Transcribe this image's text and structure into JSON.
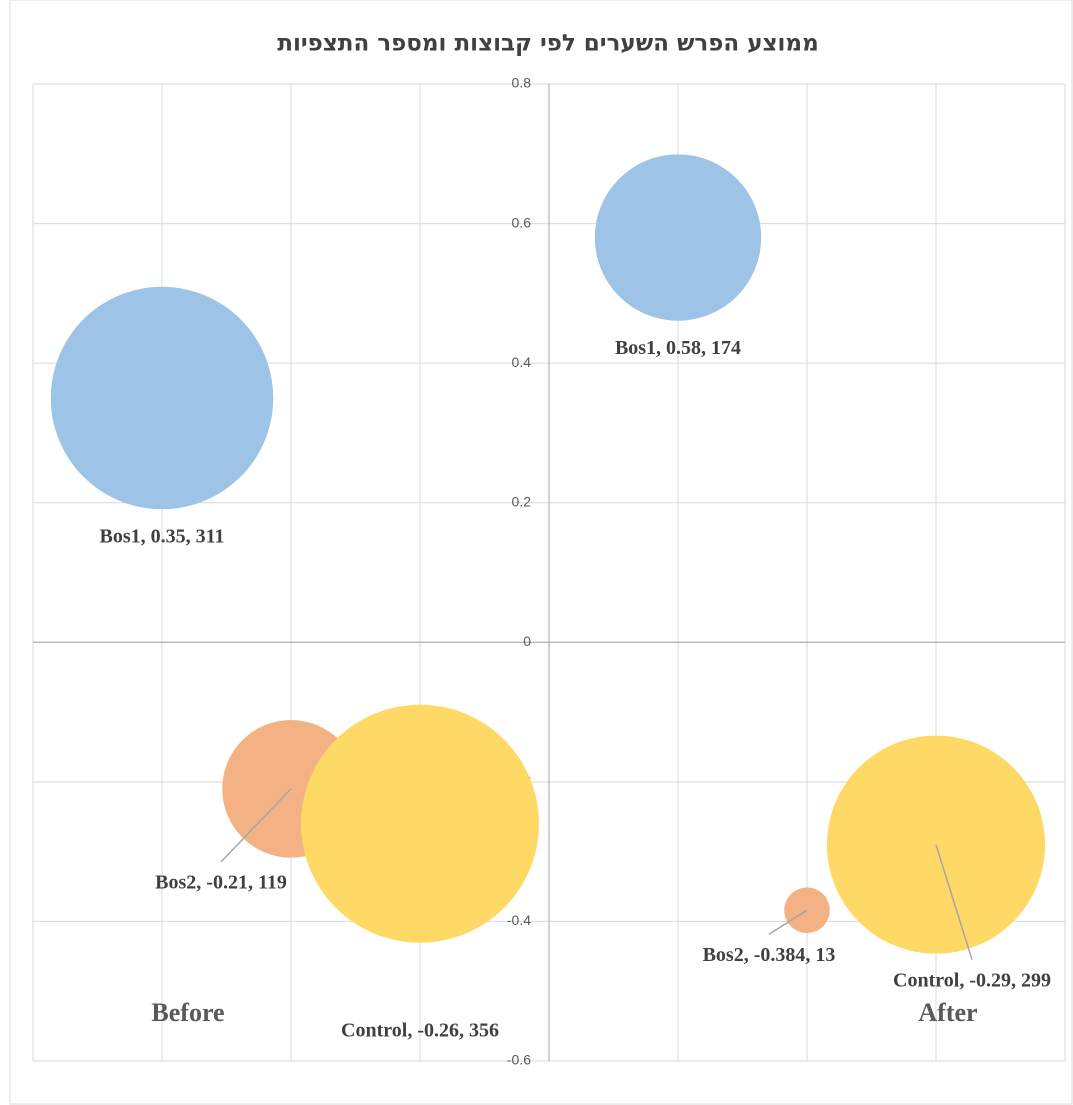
{
  "chart_data": {
    "type": "bubble",
    "title": "ממוצע הפרש השערים לפי קבוצות ומספר התצפיות",
    "xlim": [
      -4,
      4
    ],
    "xticks": [
      -4,
      -3,
      -2,
      -1,
      0,
      1,
      2,
      3,
      4
    ],
    "ylim": [
      -0.6,
      0.8
    ],
    "yticks": [
      -0.6,
      -0.4,
      -0.2,
      0,
      0.2,
      0.4,
      0.6,
      0.8
    ],
    "grid": true,
    "annotations": [
      "Before",
      "After"
    ],
    "series": [
      {
        "name": "Bos1",
        "color": "#9dc3e6",
        "x": [
          -3,
          1
        ],
        "values": [
          0.35,
          0.58
        ],
        "sizes": [
          311,
          174
        ],
        "value_labels": [
          "Bos1, 0.35, 311",
          "Bos1, 0.58, 174"
        ]
      },
      {
        "name": "Bos2",
        "color": "#f4b183",
        "x": [
          -2,
          2
        ],
        "values": [
          -0.21,
          -0.384
        ],
        "sizes": [
          119,
          13
        ],
        "value_labels": [
          "Bos2, -0.21, 119",
          "Bos2, -0.384, 13"
        ]
      },
      {
        "name": "Control",
        "color": "#ffd966",
        "x": [
          -1,
          3
        ],
        "values": [
          -0.26,
          -0.29
        ],
        "sizes": [
          356,
          299
        ],
        "value_labels": [
          "Control, -0.26, 356",
          "Control, -0.29, 299"
        ]
      }
    ]
  }
}
